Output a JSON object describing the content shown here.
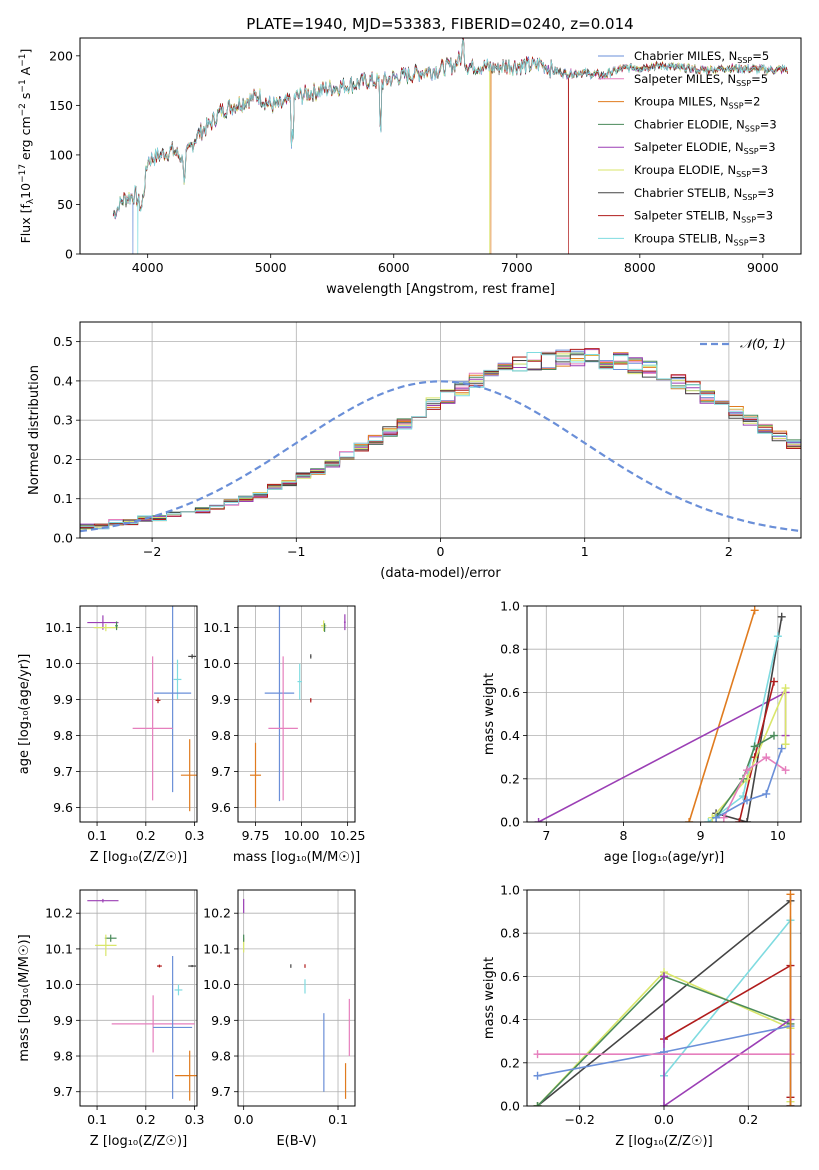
{
  "title": "PLATE=1940, MJD=53383, FIBERID=0240, z=0.014",
  "model_colors": {
    "Chabrier MILES": "#6a8fd8",
    "Salpeter MILES": "#e67fbd",
    "Kroupa MILES": "#e07b1f",
    "Chabrier ELODIE": "#4a8a5a",
    "Salpeter ELODIE": "#9b3fb5",
    "Kroupa ELODIE": "#d9e66a",
    "Chabrier STELIB": "#444444",
    "Salpeter STELIB": "#b01c1c",
    "Kroupa STELIB": "#7fdbe0"
  },
  "chart_data": [
    {
      "panel": "spectrum",
      "type": "line",
      "xlabel": "wavelength [Angstrom, rest frame]",
      "ylabel": "Flux [f",
      "ylabel_parts": [
        "Flux [f",
        "λ",
        "10",
        "−17",
        " erg cm",
        "−2",
        " s",
        "−1",
        " A",
        "−1",
        "]"
      ],
      "xlim": [
        3450,
        9310
      ],
      "ylim": [
        0,
        218
      ],
      "xticks": [
        4000,
        5000,
        6000,
        7000,
        8000,
        9000
      ],
      "yticks": [
        0,
        50,
        100,
        150,
        200
      ],
      "legend_location": "upper right",
      "series": [
        {
          "name": "Chabrier MILES",
          "name_parts": [
            "Chabrier MILES, N",
            "SSP",
            "=5"
          ]
        },
        {
          "name": "Salpeter MILES",
          "name_parts": [
            "Salpeter MILES, N",
            "SSP",
            "=5"
          ]
        },
        {
          "name": "Kroupa MILES",
          "name_parts": [
            "Kroupa MILES, N",
            "SSP",
            "=2"
          ]
        },
        {
          "name": "Chabrier ELODIE",
          "name_parts": [
            "Chabrier ELODIE, N",
            "SSP",
            "=3"
          ]
        },
        {
          "name": "Salpeter ELODIE",
          "name_parts": [
            "Salpeter ELODIE, N",
            "SSP",
            "=3"
          ]
        },
        {
          "name": "Kroupa ELODIE",
          "name_parts": [
            "Kroupa ELODIE, N",
            "SSP",
            "=3"
          ]
        },
        {
          "name": "Chabrier STELIB",
          "name_parts": [
            "Chabrier STELIB, N",
            "SSP",
            "=3"
          ]
        },
        {
          "name": "Salpeter STELIB",
          "name_parts": [
            "Salpeter STELIB, N",
            "SSP",
            "=3"
          ]
        },
        {
          "name": "Kroupa STELIB",
          "name_parts": [
            "Kroupa STELIB, N",
            "SSP",
            "=3"
          ]
        }
      ],
      "continuum_x": [
        3720,
        3800,
        3900,
        3950,
        4000,
        4100,
        4200,
        4300,
        4400,
        4500,
        4600,
        4700,
        4800,
        4900,
        5000,
        5100,
        5200,
        5300,
        5400,
        5500,
        5600,
        5700,
        5800,
        5900,
        6000,
        6100,
        6200,
        6300,
        6400,
        6500,
        6560,
        6600,
        6700,
        6800,
        6900,
        7000,
        7100,
        7200,
        7300,
        7400,
        7500,
        7600,
        7700,
        7800,
        7900,
        8000,
        8100,
        8200,
        8300,
        8400,
        8500,
        8600,
        8700,
        8800,
        8900,
        9000,
        9100,
        9200
      ],
      "continuum_y": [
        40,
        55,
        60,
        45,
        95,
        100,
        105,
        95,
        120,
        130,
        145,
        150,
        155,
        160,
        150,
        150,
        158,
        162,
        165,
        168,
        170,
        172,
        175,
        173,
        178,
        180,
        183,
        185,
        187,
        192,
        200,
        190,
        190,
        188,
        190,
        190,
        190,
        192,
        185,
        182,
        183,
        182,
        180,
        185,
        188,
        188,
        190,
        190,
        188,
        187,
        186,
        186,
        188,
        187,
        187,
        186,
        186,
        186
      ],
      "dips": [
        {
          "series": "Chabrier MILES",
          "x": 3880,
          "y": 0
        },
        {
          "series": "Kroupa STELIB",
          "x": 3920,
          "y": 0
        },
        {
          "series": "Kroupa ELODIE",
          "x": 6780,
          "y": 0
        },
        {
          "series": "Kroupa MILES",
          "x": 6790,
          "y": 0
        },
        {
          "series": "Salpeter STELIB",
          "x": 7420,
          "y": 0
        }
      ]
    },
    {
      "panel": "residuals",
      "type": "histogram",
      "xlabel": "(data-model)/error",
      "ylabel": "Normed distribution",
      "xlim": [
        -2.5,
        2.5
      ],
      "ylim": [
        0,
        0.55
      ],
      "xticks": [
        -2,
        -1,
        0,
        1,
        2
      ],
      "yticks": [
        0.0,
        0.1,
        0.2,
        0.3,
        0.4,
        0.5
      ],
      "legend_location": "upper right",
      "reference_label": "𝒩(0, 1)",
      "reference": "gaussian mean 0 sigma 1",
      "bin_width": 0.1,
      "bin_start": -2.5,
      "base_values": [
        0.03,
        0.03,
        0.04,
        0.04,
        0.05,
        0.05,
        0.06,
        0.06,
        0.07,
        0.08,
        0.09,
        0.1,
        0.11,
        0.13,
        0.14,
        0.16,
        0.17,
        0.19,
        0.21,
        0.23,
        0.25,
        0.27,
        0.29,
        0.32,
        0.34,
        0.36,
        0.38,
        0.4,
        0.42,
        0.43,
        0.44,
        0.45,
        0.45,
        0.46,
        0.46,
        0.46,
        0.45,
        0.45,
        0.44,
        0.43,
        0.42,
        0.4,
        0.38,
        0.36,
        0.34,
        0.32,
        0.3,
        0.28,
        0.26,
        0.24,
        0.22,
        0.2,
        0.18,
        0.16,
        0.14,
        0.13,
        0.11,
        0.1,
        0.09,
        0.08,
        0.07,
        0.06,
        0.05,
        0.045,
        0.04,
        0.035,
        0.03,
        0.03,
        0.025,
        0.02
      ]
    },
    {
      "panel": "age-vs-Z",
      "type": "errorbar",
      "xlabel": "Z [log₁₀(Z/Z☉)]",
      "ylabel": "age  [log₁₀(age/yr)]",
      "xlim": [
        0.065,
        0.305
      ],
      "ylim": [
        9.56,
        10.16
      ],
      "xticks": [
        0.1,
        0.2,
        0.3
      ],
      "yticks": [
        9.6,
        9.7,
        9.8,
        9.9,
        10.0,
        10.1
      ],
      "points": [
        {
          "series": "Salpeter ELODIE",
          "x": 0.112,
          "y": 10.114,
          "xerr": 0.032,
          "yerr": 0.02
        },
        {
          "series": "Kroupa ELODIE",
          "x": 0.118,
          "y": 10.1,
          "xerr": 0.025,
          "yerr": 0.01
        },
        {
          "series": "Chabrier ELODIE",
          "x": 0.14,
          "y": 10.105,
          "xerr": 0.003,
          "yerr": 0.012
        },
        {
          "series": "Chabrier STELIB",
          "x": 0.295,
          "y": 10.02,
          "xerr": 0.008,
          "yerr": 0.006
        },
        {
          "series": "Kroupa STELIB",
          "x": 0.265,
          "y": 9.956,
          "xerr": 0.008,
          "yerr": 0.055
        },
        {
          "series": "Salpeter STELIB",
          "x": 0.225,
          "y": 9.898,
          "xerr": 0.005,
          "yerr": 0.008
        },
        {
          "series": "Chabrier MILES",
          "x": 0.255,
          "y": 9.918,
          "xerr": 0.038,
          "yerr": 0.275
        },
        {
          "series": "Salpeter MILES",
          "x": 0.214,
          "y": 9.82,
          "xerr": 0.041,
          "yerr": 0.2
        },
        {
          "series": "Kroupa MILES",
          "x": 0.29,
          "y": 9.69,
          "xerr": 0.018,
          "yerr": 0.1
        }
      ]
    },
    {
      "panel": "age-vs-mass",
      "type": "errorbar",
      "xlabel": "mass [log₁₀(M/M☉)]",
      "ylabel": "",
      "xlim": [
        9.655,
        10.29
      ],
      "ylim": [
        9.56,
        10.16
      ],
      "xticks": [
        9.75,
        10.0,
        10.25
      ],
      "xticklabels": [
        "9.75",
        "10.00",
        "10.25"
      ],
      "yticks": [
        9.6,
        9.7,
        9.8,
        9.9,
        10.0,
        10.1
      ],
      "points": [
        {
          "series": "Salpeter ELODIE",
          "x": 10.235,
          "y": 10.115,
          "xerr": 0.005,
          "yerr": 0.022
        },
        {
          "series": "Kroupa ELODIE",
          "x": 10.12,
          "y": 10.105,
          "xerr": 0.015,
          "yerr": 0.015
        },
        {
          "series": "Chabrier ELODIE",
          "x": 10.125,
          "y": 10.1,
          "xerr": 0.004,
          "yerr": 0.012
        },
        {
          "series": "Chabrier STELIB",
          "x": 10.05,
          "y": 10.02,
          "xerr": 0.003,
          "yerr": 0.006
        },
        {
          "series": "Kroupa STELIB",
          "x": 9.99,
          "y": 9.95,
          "xerr": 0.012,
          "yerr": 0.05
        },
        {
          "series": "Salpeter STELIB",
          "x": 10.05,
          "y": 9.898,
          "xerr": 0.003,
          "yerr": 0.006
        },
        {
          "series": "Chabrier MILES",
          "x": 9.88,
          "y": 9.918,
          "xerr": 0.08,
          "yerr": 0.3
        },
        {
          "series": "Salpeter MILES",
          "x": 9.9,
          "y": 9.82,
          "xerr": 0.08,
          "yerr": 0.2
        },
        {
          "series": "Kroupa MILES",
          "x": 9.75,
          "y": 9.69,
          "xerr": 0.03,
          "yerr": 0.09
        }
      ]
    },
    {
      "panel": "weight-vs-age",
      "type": "line",
      "xlabel": "age  [log₁₀(age/yr)]",
      "ylabel": "mass weight",
      "xlim": [
        6.75,
        10.3
      ],
      "ylim": [
        0,
        1.0
      ],
      "xticks": [
        7,
        8,
        9,
        10
      ],
      "yticks": [
        0.0,
        0.2,
        0.4,
        0.6,
        0.8,
        1.0
      ],
      "series": [
        {
          "name": "Kroupa MILES",
          "x": [
            8.85,
            9.7
          ],
          "y": [
            0.0,
            0.98
          ]
        },
        {
          "name": "Salpeter ELODIE",
          "x": [
            6.9,
            10.1,
            10.1
          ],
          "y": [
            0.0,
            0.6,
            0.4
          ]
        },
        {
          "name": "Chabrier STELIB",
          "x": [
            9.2,
            9.6,
            10.05
          ],
          "y": [
            0.04,
            0.0,
            0.95
          ]
        },
        {
          "name": "Kroupa STELIB",
          "x": [
            9.1,
            9.55,
            10.0
          ],
          "y": [
            0.0,
            0.12,
            0.86
          ]
        },
        {
          "name": "Salpeter STELIB",
          "x": [
            9.5,
            9.7,
            9.95
          ],
          "y": [
            0.0,
            0.3,
            0.65
          ]
        },
        {
          "name": "Kroupa ELODIE",
          "x": [
            9.15,
            9.6,
            10.1,
            10.1
          ],
          "y": [
            0.02,
            0.2,
            0.62,
            0.36
          ]
        },
        {
          "name": "Chabrier ELODIE",
          "x": [
            9.2,
            9.55,
            9.7,
            9.95
          ],
          "y": [
            0.02,
            0.2,
            0.35,
            0.4
          ]
        },
        {
          "name": "Salpeter MILES",
          "x": [
            9.3,
            9.6,
            9.85,
            10.1
          ],
          "y": [
            0.02,
            0.24,
            0.3,
            0.24
          ]
        },
        {
          "name": "Chabrier MILES",
          "x": [
            9.2,
            9.6,
            9.85,
            10.05
          ],
          "y": [
            0.02,
            0.1,
            0.13,
            0.34
          ]
        }
      ]
    },
    {
      "panel": "mass-vs-Z",
      "type": "errorbar",
      "xlabel": "Z [log₁₀(Z/Z☉)]",
      "ylabel": "mass [log₁₀(M/M☉)]",
      "xlim": [
        0.065,
        0.305
      ],
      "ylim": [
        9.66,
        10.265
      ],
      "xticks": [
        0.1,
        0.2,
        0.3
      ],
      "yticks": [
        9.7,
        9.8,
        9.9,
        10.0,
        10.1,
        10.2
      ],
      "points": [
        {
          "series": "Salpeter ELODIE",
          "x": 0.112,
          "y": 10.235,
          "xerr": 0.032,
          "yerr": 0.005
        },
        {
          "series": "Chabrier ELODIE",
          "x": 0.128,
          "y": 10.13,
          "xerr": 0.012,
          "yerr": 0.01
        },
        {
          "series": "Kroupa ELODIE",
          "x": 0.118,
          "y": 10.11,
          "xerr": 0.022,
          "yerr": 0.03
        },
        {
          "series": "Salpeter STELIB",
          "x": 0.228,
          "y": 10.052,
          "xerr": 0.005,
          "yerr": 0.004
        },
        {
          "series": "Chabrier STELIB",
          "x": 0.295,
          "y": 10.052,
          "xerr": 0.008,
          "yerr": 0.003
        },
        {
          "series": "Kroupa STELIB",
          "x": 0.267,
          "y": 9.985,
          "xerr": 0.008,
          "yerr": 0.015
        },
        {
          "series": "Salpeter MILES",
          "x": 0.215,
          "y": 9.89,
          "xerr": 0.085,
          "yerr": 0.08
        },
        {
          "series": "Chabrier MILES",
          "x": 0.255,
          "y": 9.88,
          "xerr": 0.04,
          "yerr": 0.2
        },
        {
          "series": "Kroupa MILES",
          "x": 0.29,
          "y": 9.745,
          "xerr": 0.03,
          "yerr": 0.07
        }
      ]
    },
    {
      "panel": "mass-vs-EBV",
      "type": "errorbar",
      "xlabel": "E(B-V)",
      "ylabel": "",
      "xlim": [
        -0.006,
        0.118
      ],
      "ylim": [
        9.66,
        10.265
      ],
      "xticks": [
        0.0,
        0.1
      ],
      "xticklabels": [
        "0.0",
        "0.1"
      ],
      "yticks": [
        9.7,
        9.8,
        9.9,
        10.0,
        10.1,
        10.2
      ],
      "points": [
        {
          "series": "Salpeter ELODIE",
          "x": 0.0,
          "y": 10.22,
          "xerr": 0.0,
          "yerr": 0.02
        },
        {
          "series": "Kroupa ELODIE",
          "x": 0.0,
          "y": 10.11,
          "xerr": 0.0,
          "yerr": 0.02
        },
        {
          "series": "Chabrier ELODIE",
          "x": 0.0,
          "y": 10.13,
          "xerr": 0.0,
          "yerr": 0.01
        },
        {
          "series": "Chabrier STELIB",
          "x": 0.05,
          "y": 10.052,
          "xerr": 0.0,
          "yerr": 0.005
        },
        {
          "series": "Salpeter STELIB",
          "x": 0.065,
          "y": 10.052,
          "xerr": 0.0,
          "yerr": 0.005
        },
        {
          "series": "Kroupa STELIB",
          "x": 0.065,
          "y": 9.995,
          "xerr": 0.0,
          "yerr": 0.02
        },
        {
          "series": "Chabrier MILES",
          "x": 0.085,
          "y": 9.81,
          "xerr": 0.0,
          "yerr": 0.11
        },
        {
          "series": "Kroupa MILES",
          "x": 0.108,
          "y": 9.73,
          "xerr": 0.0,
          "yerr": 0.05
        },
        {
          "series": "Salpeter MILES",
          "x": 0.112,
          "y": 9.88,
          "xerr": 0.0,
          "yerr": 0.08
        }
      ]
    },
    {
      "panel": "weight-vs-Z",
      "type": "line",
      "xlabel": "Z [log₁₀(Z/Z☉)]",
      "ylabel": "mass weight",
      "xlim": [
        -0.325,
        0.325
      ],
      "ylim": [
        0,
        1.0
      ],
      "xticks": [
        -0.2,
        0.0,
        0.2
      ],
      "xticklabels": [
        "−0.2",
        "0.0",
        "0.2"
      ],
      "yticks": [
        0.0,
        0.2,
        0.4,
        0.6,
        0.8,
        1.0
      ],
      "series": [
        {
          "name": "Chabrier STELIB",
          "x": [
            -0.3,
            0.3
          ],
          "y": [
            0.0,
            0.95
          ]
        },
        {
          "name": "Kroupa STELIB",
          "x": [
            0.0,
            0.3,
            0.3
          ],
          "y": [
            0.14,
            0.86,
            0.0
          ]
        },
        {
          "name": "Salpeter STELIB",
          "x": [
            0.0,
            0.3,
            0.3
          ],
          "y": [
            0.31,
            0.65,
            0.04
          ]
        },
        {
          "name": "Kroupa ELODIE",
          "x": [
            -0.3,
            0.0,
            0.3,
            0.3
          ],
          "y": [
            0.0,
            0.62,
            0.36,
            0.02
          ]
        },
        {
          "name": "Chabrier ELODIE",
          "x": [
            -0.3,
            0.0,
            0.3
          ],
          "y": [
            0.0,
            0.6,
            0.38
          ]
        },
        {
          "name": "Salpeter ELODIE",
          "x": [
            0.0,
            0.0,
            0.3,
            0.3
          ],
          "y": [
            0.6,
            0.0,
            0.4,
            0.0
          ]
        },
        {
          "name": "Chabrier MILES",
          "x": [
            -0.3,
            0.0,
            0.3,
            0.3
          ],
          "y": [
            0.14,
            0.25,
            0.37,
            0.0
          ]
        },
        {
          "name": "Salpeter MILES",
          "x": [
            -0.3,
            0.3
          ],
          "y": [
            0.24,
            0.24
          ]
        },
        {
          "name": "Kroupa MILES",
          "x": [
            0.3,
            0.3
          ],
          "y": [
            0.0,
            0.98
          ]
        }
      ]
    }
  ]
}
